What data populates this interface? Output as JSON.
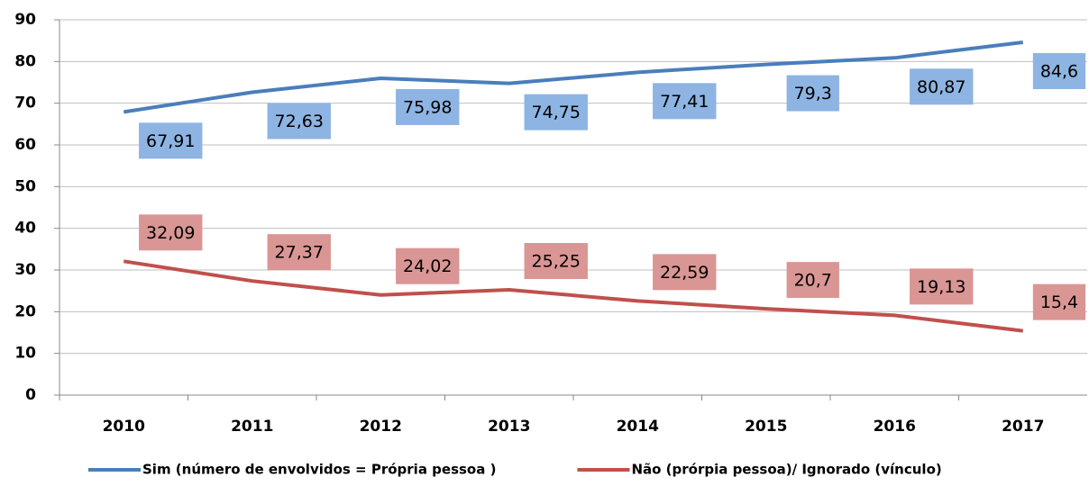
{
  "chart_data": {
    "type": "line",
    "categories": [
      "2010",
      "2011",
      "2012",
      "2013",
      "2014",
      "2015",
      "2016",
      "2017"
    ],
    "series": [
      {
        "name": "Sim (número de envolvidos = Própria pessoa )",
        "color": "#4a7ebb",
        "values": [
          67.91,
          72.63,
          75.98,
          74.75,
          77.41,
          79.3,
          80.87,
          84.6
        ],
        "value_labels": [
          "67,91",
          "72,63",
          "75,98",
          "74,75",
          "77,41",
          "79,3",
          "80,87",
          "84,6"
        ]
      },
      {
        "name": "Não (prórpia pessoa)/  Ignorado (vínculo)",
        "color": "#c0504d",
        "values": [
          32.09,
          27.37,
          24.02,
          25.25,
          22.59,
          20.7,
          19.13,
          15.4
        ],
        "value_labels": [
          "32,09",
          "27,37",
          "24,02",
          "25,25",
          "22,59",
          "20,7",
          "19,13",
          "15,4"
        ]
      }
    ],
    "ylim": [
      0,
      90
    ],
    "yticks": [
      0,
      10,
      20,
      30,
      40,
      50,
      60,
      70,
      80,
      90
    ],
    "grid": true,
    "legend": "bottom"
  }
}
